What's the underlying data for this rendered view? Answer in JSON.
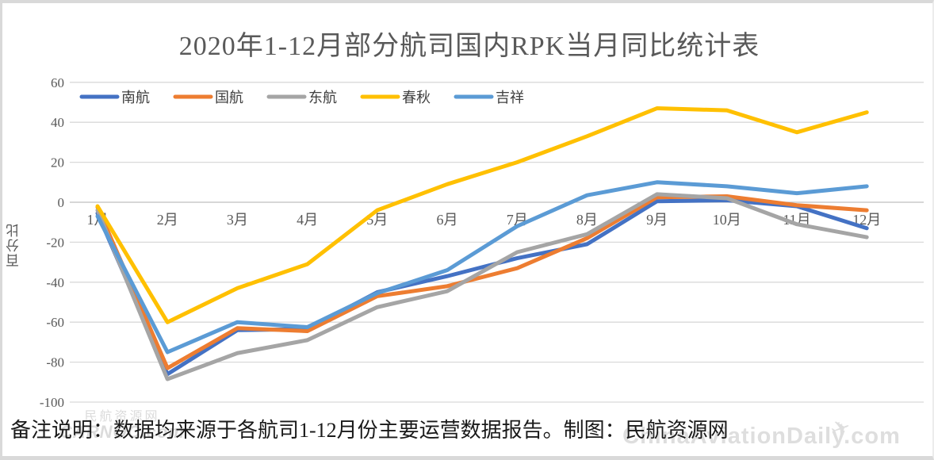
{
  "page": {
    "title": "2020年1-12月部分航司国内RPK当月同比统计表"
  },
  "chart_data": {
    "type": "line",
    "title": "2020年1-12月部分航司国内RPK当月同比统计表",
    "xlabel": "",
    "ylabel": "百分比",
    "categories": [
      "1月",
      "2月",
      "3月",
      "4月",
      "5月",
      "6月",
      "7月",
      "8月",
      "9月",
      "10月",
      "11月",
      "12月"
    ],
    "y_ticks": [
      60,
      40,
      20,
      0,
      -20,
      -40,
      -60,
      -80,
      -100
    ],
    "ylim": [
      -100,
      60
    ],
    "grid": true,
    "legend_position": "top-left",
    "series": [
      {
        "name": "南航",
        "color": "#4472C4",
        "values": [
          -5.5,
          -86,
          -64,
          -63.5,
          -45,
          -37,
          -28,
          -21,
          0.5,
          1,
          -2,
          -13
        ]
      },
      {
        "name": "国航",
        "color": "#ED7D31",
        "values": [
          -2.5,
          -83,
          -63,
          -64.5,
          -47,
          -42,
          -33,
          -18,
          2.5,
          3,
          -1.5,
          -4
        ]
      },
      {
        "name": "东航",
        "color": "#A5A5A5",
        "values": [
          -4,
          -88.5,
          -75.5,
          -69,
          -52.5,
          -44.5,
          -25,
          -16,
          4,
          2,
          -11,
          -17.5
        ]
      },
      {
        "name": "春秋",
        "color": "#FFC000",
        "values": [
          -2,
          -60,
          -43,
          -31,
          -4,
          9,
          20,
          33,
          47,
          46,
          35,
          45
        ]
      },
      {
        "name": "吉祥",
        "color": "#5B9BD5",
        "values": [
          -7,
          -75,
          -60,
          -62.5,
          -45.5,
          -34,
          -12,
          3.5,
          10,
          8,
          4.5,
          8
        ]
      }
    ]
  },
  "footer": {
    "note": "备注说明：数据均来源于各航司1-12月份主要运营数据报告。制图：民航资源网"
  },
  "watermarks": {
    "bottom_left_line1": "民航资源网",
    "bottom_left_line2": "CARNOC.com",
    "bottom_right": "ChinaAviationDaily.com",
    "plane_icon": "✈"
  },
  "colors": {
    "grid": "#d9d9d9",
    "zero_axis": "#bfbfbf",
    "chart_text": "#595959"
  }
}
